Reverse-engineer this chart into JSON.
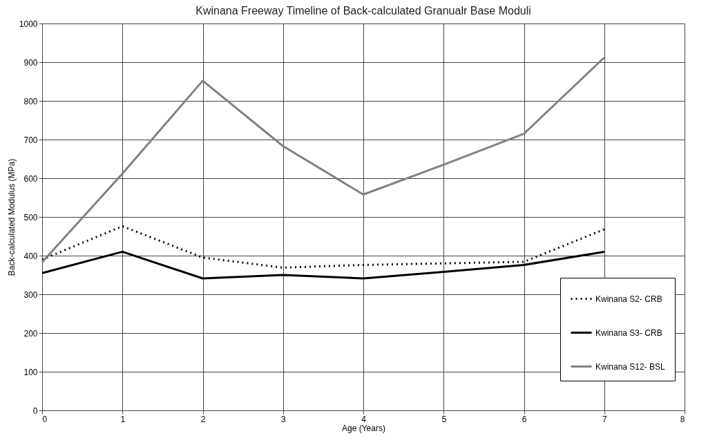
{
  "chart_data": {
    "type": "line",
    "title": "Kwinana Freeway Timeline of Back-calculated Granualr Base Moduli",
    "xlabel": "Age (Years)",
    "ylabel": "Back-calculated Modulus (MPa)",
    "x": [
      0,
      1,
      2,
      3,
      4,
      5,
      6,
      7
    ],
    "series": [
      {
        "name": "Kwinana S2- CRB",
        "color": "#000000",
        "line_style": "dotted",
        "values": [
          390,
          476,
          395,
          369,
          376,
          380,
          384,
          468
        ]
      },
      {
        "name": "Kwinana S3- CRB",
        "color": "#000000",
        "line_style": "solid",
        "values": [
          355,
          410,
          341,
          350,
          341,
          358,
          376,
          410
        ]
      },
      {
        "name": "Kwinana S12- BSL",
        "color": "#808080",
        "line_style": "solid",
        "values": [
          383,
          612,
          852,
          683,
          558,
          635,
          715,
          912
        ]
      }
    ],
    "xlim": [
      0,
      8
    ],
    "xticks": [
      0,
      1,
      2,
      3,
      4,
      5,
      6,
      7,
      8
    ],
    "ylim": [
      0,
      1000
    ],
    "yticks": [
      0,
      100,
      200,
      300,
      400,
      500,
      600,
      700,
      800,
      900,
      1000
    ],
    "grid": true,
    "legend": "right",
    "marker": "none"
  }
}
